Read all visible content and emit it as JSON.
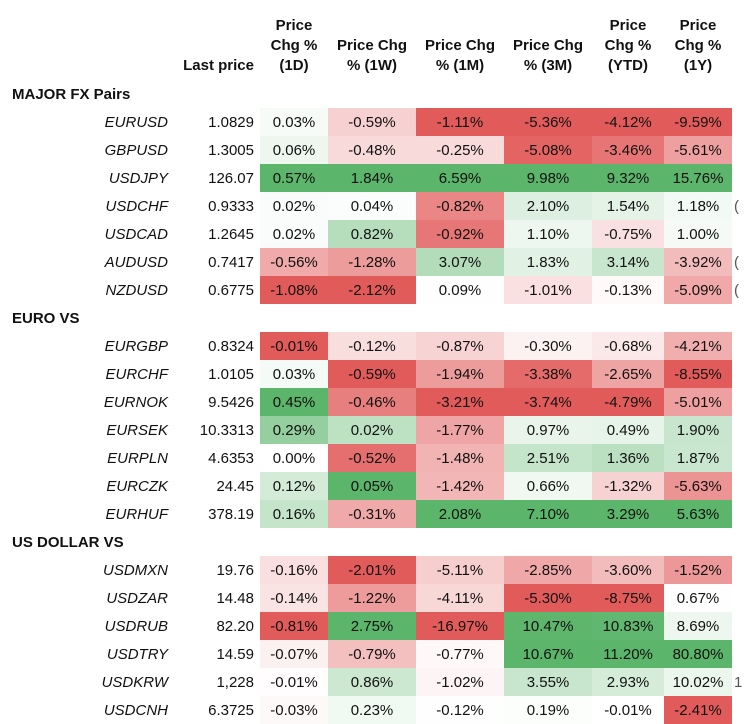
{
  "columns": {
    "last": "Last price",
    "d1": [
      "Price",
      "Chg %",
      "(1D)"
    ],
    "w1": [
      "Price Chg",
      "% (1W)"
    ],
    "m1": [
      "Price Chg",
      "% (1M)"
    ],
    "m3": [
      "Price Chg",
      "% (3M)"
    ],
    "ytd": [
      "Price",
      "Chg %",
      "(YTD)"
    ],
    "y1": [
      "Price",
      "Chg %",
      "(1Y)"
    ]
  },
  "colors": {
    "positive": "#5bb56a",
    "negative": "#e25b5b",
    "neutral": "#ffffff"
  },
  "chart_data": {
    "type": "table",
    "sections": [
      {
        "title": "MAJOR FX Pairs",
        "rows": [
          {
            "pair": "EURUSD",
            "last": "1.0829",
            "values": [
              "0.03%",
              "-0.59%",
              "-1.11%",
              "-5.36%",
              "-4.12%",
              "-9.59%"
            ],
            "edge": ""
          },
          {
            "pair": "GBPUSD",
            "last": "1.3005",
            "values": [
              "0.06%",
              "-0.48%",
              "-0.25%",
              "-5.08%",
              "-3.46%",
              "-5.61%"
            ],
            "edge": ""
          },
          {
            "pair": "USDJPY",
            "last": "126.07",
            "values": [
              "0.57%",
              "1.84%",
              "6.59%",
              "9.98%",
              "9.32%",
              "15.76%"
            ],
            "edge": ""
          },
          {
            "pair": "USDCHF",
            "last": "0.9333",
            "values": [
              "0.02%",
              "0.04%",
              "-0.82%",
              "2.10%",
              "1.54%",
              "1.18%"
            ],
            "edge": "("
          },
          {
            "pair": "USDCAD",
            "last": "1.2645",
            "values": [
              "0.02%",
              "0.82%",
              "-0.92%",
              "1.10%",
              "-0.75%",
              "1.00%"
            ],
            "edge": ""
          },
          {
            "pair": "AUDUSD",
            "last": "0.7417",
            "values": [
              "-0.56%",
              "-1.28%",
              "3.07%",
              "1.83%",
              "3.14%",
              "-3.92%"
            ],
            "edge": "("
          },
          {
            "pair": "NZDUSD",
            "last": "0.6775",
            "values": [
              "-1.08%",
              "-2.12%",
              "0.09%",
              "-1.01%",
              "-0.13%",
              "-5.09%"
            ],
            "edge": "("
          }
        ]
      },
      {
        "title": "EURO VS",
        "rows": [
          {
            "pair": "EURGBP",
            "last": "0.8324",
            "values": [
              "-0.01%",
              "-0.12%",
              "-0.87%",
              "-0.30%",
              "-0.68%",
              "-4.21%"
            ],
            "edge": ""
          },
          {
            "pair": "EURCHF",
            "last": "1.0105",
            "values": [
              "0.03%",
              "-0.59%",
              "-1.94%",
              "-3.38%",
              "-2.65%",
              "-8.55%"
            ],
            "edge": ""
          },
          {
            "pair": "EURNOK",
            "last": "9.5426",
            "values": [
              "0.45%",
              "-0.46%",
              "-3.21%",
              "-3.74%",
              "-4.79%",
              "-5.01%"
            ],
            "edge": ""
          },
          {
            "pair": "EURSEK",
            "last": "10.3313",
            "values": [
              "0.29%",
              "0.02%",
              "-1.77%",
              "0.97%",
              "0.49%",
              "1.90%"
            ],
            "edge": ""
          },
          {
            "pair": "EURPLN",
            "last": "4.6353",
            "values": [
              "0.00%",
              "-0.52%",
              "-1.48%",
              "2.51%",
              "1.36%",
              "1.87%"
            ],
            "edge": ""
          },
          {
            "pair": "EURCZK",
            "last": "24.45",
            "values": [
              "0.12%",
              "0.05%",
              "-1.42%",
              "0.66%",
              "-1.32%",
              "-5.63%"
            ],
            "edge": ""
          },
          {
            "pair": "EURHUF",
            "last": "378.19",
            "values": [
              "0.16%",
              "-0.31%",
              "2.08%",
              "7.10%",
              "3.29%",
              "5.63%"
            ],
            "edge": ""
          }
        ]
      },
      {
        "title": "US DOLLAR VS",
        "rows": [
          {
            "pair": "USDMXN",
            "last": "19.76",
            "values": [
              "-0.16%",
              "-2.01%",
              "-5.11%",
              "-2.85%",
              "-3.60%",
              "-1.52%"
            ],
            "edge": ""
          },
          {
            "pair": "USDZAR",
            "last": "14.48",
            "values": [
              "-0.14%",
              "-1.22%",
              "-4.11%",
              "-5.30%",
              "-8.75%",
              "0.67%"
            ],
            "edge": ""
          },
          {
            "pair": "USDRUB",
            "last": "82.20",
            "values": [
              "-0.81%",
              "2.75%",
              "-16.97%",
              "10.47%",
              "10.83%",
              "8.69%"
            ],
            "edge": ""
          },
          {
            "pair": "USDTRY",
            "last": "14.59",
            "values": [
              "-0.07%",
              "-0.79%",
              "-0.77%",
              "10.67%",
              "11.20%",
              "80.80%"
            ],
            "edge": ""
          },
          {
            "pair": "USDKRW",
            "last": "1,228",
            "values": [
              "-0.01%",
              "0.86%",
              "-1.02%",
              "3.55%",
              "2.93%",
              "10.02%"
            ],
            "edge": "1"
          },
          {
            "pair": "USDCNH",
            "last": "6.3725",
            "values": [
              "-0.03%",
              "0.23%",
              "-0.12%",
              "0.19%",
              "-0.01%",
              "-2.41%"
            ],
            "edge": ""
          }
        ]
      }
    ]
  }
}
